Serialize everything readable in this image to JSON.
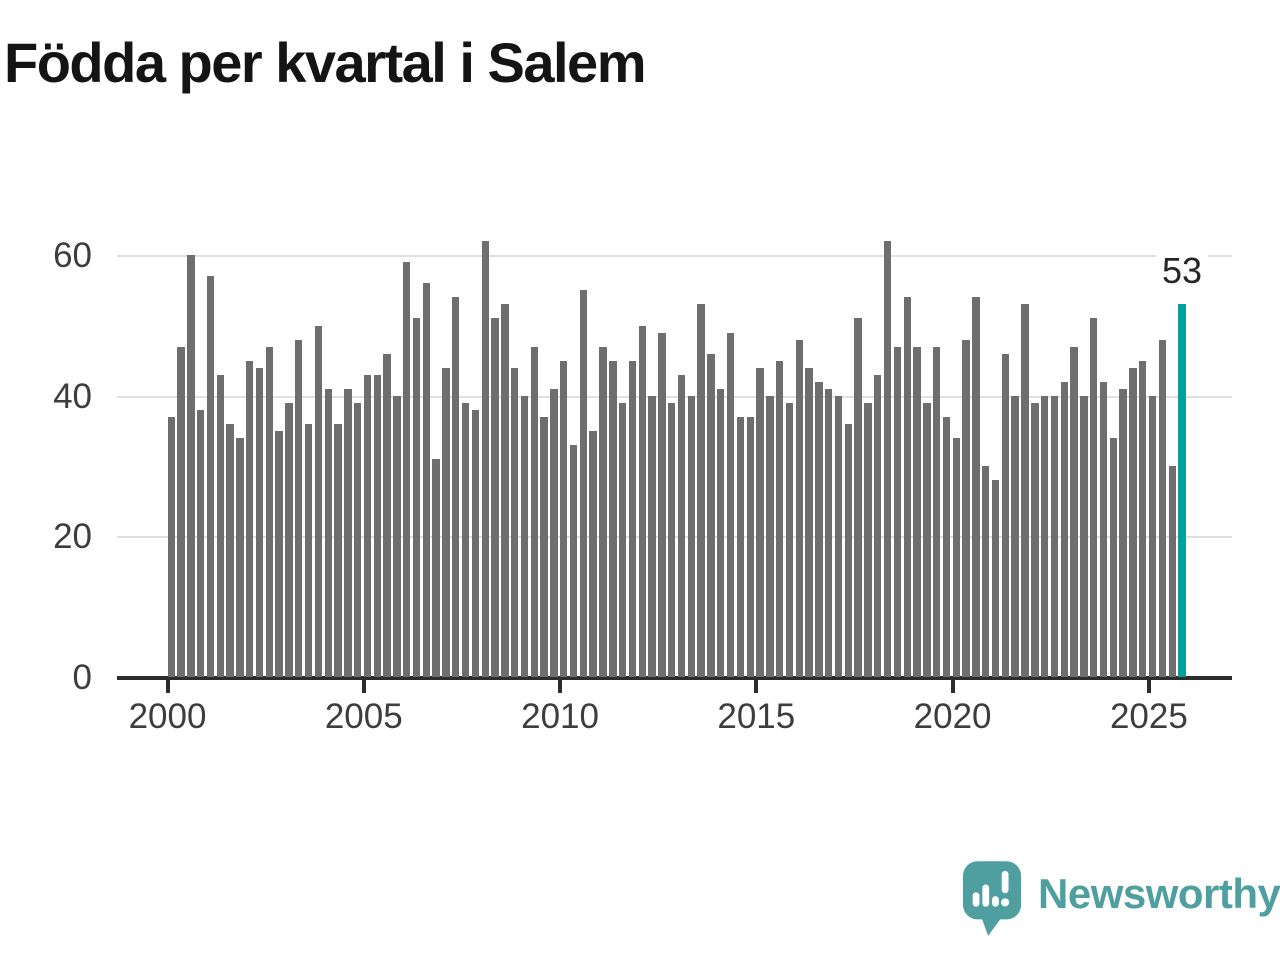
{
  "title": "Födda per kvartal i Salem",
  "chart_data": {
    "type": "bar",
    "title": "Födda per kvartal i Salem",
    "frequency": "quarterly",
    "start_period": "2000 Q1",
    "end_period": "2025 Q4",
    "values": [
      37,
      47,
      60,
      38,
      57,
      43,
      36,
      34,
      45,
      44,
      47,
      35,
      39,
      48,
      36,
      50,
      41,
      36,
      41,
      39,
      43,
      43,
      46,
      40,
      59,
      51,
      56,
      31,
      44,
      54,
      39,
      38,
      62,
      51,
      53,
      44,
      40,
      47,
      37,
      41,
      45,
      33,
      55,
      35,
      47,
      45,
      39,
      45,
      50,
      40,
      49,
      39,
      43,
      40,
      53,
      46,
      41,
      49,
      37,
      37,
      44,
      40,
      45,
      39,
      48,
      44,
      42,
      41,
      40,
      36,
      51,
      39,
      43,
      62,
      47,
      54,
      47,
      39,
      47,
      37,
      34,
      48,
      54,
      30,
      28,
      46,
      40,
      53,
      39,
      40,
      40,
      42,
      47,
      40,
      51,
      42,
      34,
      41,
      44,
      45,
      40,
      48,
      30,
      53
    ],
    "y_ticks": [
      0,
      20,
      40,
      60
    ],
    "x_tick_labels": [
      "2000",
      "2005",
      "2010",
      "2015",
      "2020",
      "2025"
    ],
    "x_tick_interval_quarters": 20,
    "ylim": [
      0,
      64
    ],
    "grid": "horizontal",
    "legend": "none",
    "bar_color": "#6e6e6e",
    "axis_color": "#2d2d2d",
    "gridline_color": "#e0e0e0",
    "highlight": {
      "index": 103,
      "period": "2025 Q4",
      "value": 53,
      "label": "53",
      "color": "#00a19c"
    }
  },
  "footer": {
    "brand": "Newsworthy",
    "brand_color": "#4f9fa0",
    "logo_icon": "newsworthy-speech-bubble-chart-icon"
  }
}
